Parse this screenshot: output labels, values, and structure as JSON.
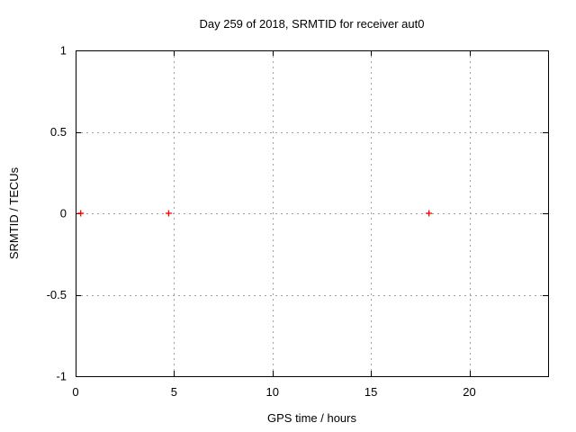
{
  "chart_data": {
    "type": "scatter",
    "title": "Day 259 of 2018, SRMTID for receiver aut0",
    "xlabel": "GPS time / hours",
    "ylabel": "SRMTID / TECUs",
    "xlim": [
      0,
      24
    ],
    "ylim": [
      -1,
      1
    ],
    "xticks": [
      0,
      5,
      10,
      15,
      20
    ],
    "xtick_labels": [
      "0",
      "5",
      "10",
      "15",
      "20"
    ],
    "yticks": [
      -1,
      -0.5,
      0,
      0.5,
      1
    ],
    "ytick_labels": [
      "-1",
      "-0.5",
      "0",
      "0.5",
      "1"
    ],
    "grid": true,
    "legend": "none",
    "series": [
      {
        "name": "SRMTID",
        "marker": "plus",
        "color": "#ff0000",
        "points": [
          {
            "x": 0.26,
            "y": 0
          },
          {
            "x": 4.73,
            "y": 0
          },
          {
            "x": 17.95,
            "y": 0
          }
        ]
      }
    ],
    "colors": {
      "background": "#ffffff",
      "border": "#000000",
      "grid": "#a0a0a0",
      "text": "#000000"
    }
  }
}
